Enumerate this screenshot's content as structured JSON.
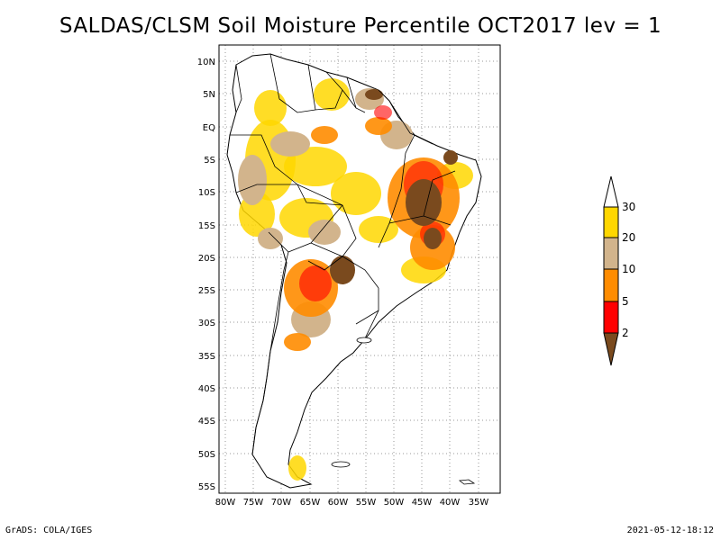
{
  "title": "SALDAS/CLSM Soil Moisture Percentile OCT2017 lev = 1",
  "footer_left": "GrADS: COLA/IGES",
  "footer_right": "2021-05-12-18:12",
  "map": {
    "lat_labels": [
      "10N",
      "5N",
      "EQ",
      "5S",
      "10S",
      "15S",
      "20S",
      "25S",
      "30S",
      "35S",
      "40S",
      "45S",
      "50S",
      "55S"
    ],
    "lon_labels": [
      "80W",
      "75W",
      "70W",
      "65W",
      "60W",
      "55W",
      "50W",
      "45W",
      "40W",
      "35W"
    ]
  },
  "legend": {
    "levels": [
      "2",
      "5",
      "10",
      "20",
      "30"
    ],
    "colors": {
      "below_2": "#7a4a1e",
      "2_5": "#ff0000",
      "5_10": "#ff8c00",
      "10_20": "#d2b48c",
      "20_30": "#ffd700",
      "above_30": "#ffffff"
    }
  }
}
